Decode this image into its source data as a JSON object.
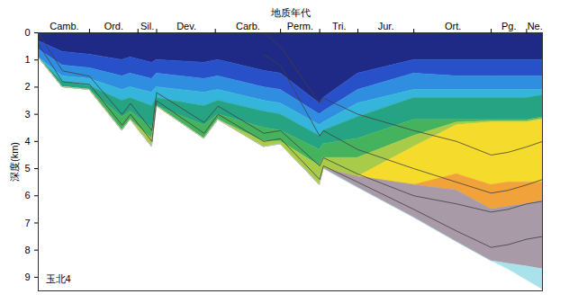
{
  "chart_data": {
    "type": "area",
    "x_label": "地质年代",
    "y_label": "深度(km)",
    "annotation": "玉北4",
    "x": [
      541,
      515,
      486,
      451,
      442,
      419,
      414,
      363,
      348,
      299,
      281,
      239,
      235,
      198,
      138,
      92,
      55,
      37,
      17,
      0
    ],
    "xlim": [
      541,
      0
    ],
    "xticks": [
      {
        "value": 513,
        "label": "Camb."
      },
      {
        "value": 460,
        "label": "Ord."
      },
      {
        "value": 424,
        "label": "Sil."
      },
      {
        "value": 382,
        "label": "Dev."
      },
      {
        "value": 316,
        "label": "Carb."
      },
      {
        "value": 260,
        "label": "Perm."
      },
      {
        "value": 218,
        "label": "Tri."
      },
      {
        "value": 168,
        "label": "Jur."
      },
      {
        "value": 96,
        "label": "Ort."
      },
      {
        "value": 36,
        "label": "Pg."
      },
      {
        "value": 8,
        "label": "Ne."
      }
    ],
    "period_boundaries": [
      486,
      434,
      414,
      351,
      281,
      239,
      198,
      138,
      55,
      17
    ],
    "ylim": [
      0,
      9.5
    ],
    "yticks": [
      0,
      1,
      2,
      3,
      4,
      5,
      6,
      7,
      8,
      9
    ],
    "series": [
      {
        "color": "#1f2a86",
        "y1": [
          0,
          0,
          0,
          0,
          0,
          0,
          0,
          0,
          0,
          0,
          0,
          0,
          0,
          0,
          0,
          0,
          0,
          0,
          0,
          0
        ],
        "y2": [
          0.3,
          0.7,
          0.8,
          1.0,
          0.9,
          1.1,
          1.0,
          1.1,
          1.0,
          1.4,
          1.5,
          2.6,
          2.4,
          1.5,
          1.0,
          1.0,
          1.0,
          1.0,
          1.0,
          1.0
        ]
      },
      {
        "color": "#2850c8",
        "y1": [
          0.3,
          0.7,
          0.8,
          1.0,
          0.9,
          1.1,
          1.0,
          1.1,
          1.0,
          1.4,
          1.5,
          2.6,
          2.4,
          1.5,
          1.0,
          1.0,
          1.0,
          1.0,
          1.0,
          1.0
        ],
        "y2": [
          0.6,
          1.2,
          1.3,
          1.6,
          1.5,
          1.7,
          1.5,
          1.7,
          1.6,
          2.0,
          2.1,
          3.0,
          2.9,
          2.1,
          1.5,
          1.6,
          1.6,
          1.6,
          1.6,
          1.6
        ]
      },
      {
        "color": "#2f8ee0",
        "y1": [
          0.6,
          1.2,
          1.3,
          1.6,
          1.5,
          1.7,
          1.5,
          1.7,
          1.6,
          2.0,
          2.1,
          3.0,
          2.9,
          2.1,
          1.5,
          1.6,
          1.6,
          1.6,
          1.6,
          1.6
        ],
        "y2": [
          0.9,
          1.6,
          1.7,
          2.1,
          2.0,
          2.2,
          2.0,
          2.2,
          2.1,
          2.5,
          2.6,
          3.4,
          3.3,
          2.6,
          2.1,
          2.1,
          2.1,
          2.1,
          2.1,
          2.1
        ]
      },
      {
        "color": "#35b5dc",
        "y1": [
          0.9,
          1.6,
          1.7,
          2.1,
          2.0,
          2.2,
          2.0,
          2.2,
          2.1,
          2.5,
          2.6,
          3.4,
          3.3,
          2.6,
          2.1,
          2.1,
          2.1,
          2.1,
          2.1,
          2.1
        ],
        "y2": [
          0.9,
          1.8,
          1.95,
          2.5,
          2.4,
          2.7,
          2.4,
          2.7,
          2.5,
          2.9,
          3.0,
          3.8,
          3.6,
          3.1,
          2.4,
          2.4,
          2.4,
          2.4,
          2.4,
          2.3
        ]
      },
      {
        "color": "#26a383",
        "y1": [
          0.9,
          1.8,
          1.95,
          2.5,
          2.4,
          2.7,
          2.4,
          2.7,
          2.5,
          2.9,
          3.0,
          3.8,
          3.6,
          3.1,
          2.4,
          2.4,
          2.4,
          2.4,
          2.4,
          2.3
        ],
        "y2": [
          0.9,
          2.0,
          2.1,
          3.1,
          2.9,
          3.5,
          2.7,
          3.4,
          3.0,
          3.5,
          3.6,
          4.3,
          4.1,
          3.9,
          3.2,
          3.2,
          3.2,
          3.2,
          3.2,
          3.1
        ]
      },
      {
        "color": "#45b35e",
        "y1": [
          0.9,
          2.0,
          2.1,
          3.1,
          2.9,
          3.5,
          2.7,
          3.4,
          3.0,
          3.5,
          3.6,
          4.3,
          4.1,
          3.9,
          3.2,
          3.2,
          3.2,
          3.2,
          3.2,
          3.1
        ],
        "y2": [
          0.9,
          2.0,
          2.1,
          3.6,
          3.2,
          3.9,
          2.7,
          3.9,
          3.2,
          4.0,
          4.0,
          4.9,
          4.6,
          4.6,
          3.8,
          3.3,
          3.25,
          3.25,
          3.25,
          3.15
        ]
      },
      {
        "color": "#a9cb4a",
        "y1": [
          0.9,
          2.0,
          2.1,
          3.6,
          3.2,
          3.9,
          2.7,
          3.9,
          3.2,
          4.0,
          4.0,
          4.9,
          4.6,
          4.6,
          3.8,
          3.3,
          3.25,
          3.25,
          3.25,
          3.15
        ],
        "y2": [
          0.9,
          2.0,
          2.1,
          3.6,
          3.2,
          4.2,
          2.7,
          3.9,
          3.2,
          4.2,
          4.1,
          5.6,
          5.0,
          5.3,
          4.2,
          3.4,
          3.3,
          3.3,
          3.3,
          3.2
        ]
      },
      {
        "color": "#f5dc2c",
        "y1": [
          0.9,
          2.0,
          2.1,
          3.6,
          3.2,
          4.2,
          2.7,
          3.9,
          3.2,
          4.2,
          4.1,
          5.6,
          5.0,
          5.3,
          4.2,
          3.4,
          3.3,
          3.3,
          3.3,
          3.2
        ],
        "y2": [
          0.9,
          2.0,
          2.1,
          3.6,
          3.2,
          4.2,
          2.7,
          3.9,
          3.2,
          4.2,
          4.1,
          5.6,
          5.0,
          5.3,
          5.6,
          5.2,
          5.6,
          5.5,
          5.5,
          5.5
        ]
      },
      {
        "color": "#f2a23a",
        "y1": [
          0.9,
          2.0,
          2.1,
          3.6,
          3.2,
          4.2,
          2.7,
          3.9,
          3.2,
          4.2,
          4.1,
          5.6,
          5.0,
          5.3,
          5.6,
          5.2,
          5.6,
          5.5,
          5.5,
          5.5
        ],
        "y2": [
          0.9,
          2.0,
          2.1,
          3.6,
          3.2,
          4.2,
          2.7,
          3.9,
          3.2,
          4.2,
          4.1,
          5.6,
          5.0,
          5.3,
          5.6,
          5.8,
          6.5,
          6.4,
          6.3,
          6.2
        ]
      },
      {
        "color": "#a99aa8",
        "y1": [
          0.9,
          2.0,
          2.1,
          3.6,
          3.2,
          4.2,
          2.7,
          3.9,
          3.2,
          4.2,
          4.1,
          5.6,
          5.0,
          5.3,
          5.6,
          5.8,
          6.5,
          6.4,
          6.3,
          6.2
        ],
        "y2": [
          0.9,
          2.0,
          2.1,
          3.6,
          3.2,
          4.2,
          2.7,
          3.9,
          3.2,
          4.2,
          4.1,
          5.6,
          5.0,
          5.7,
          6.8,
          7.7,
          8.4,
          8.5,
          8.6,
          8.7
        ]
      },
      {
        "color": "#a9e2ea",
        "y1": [
          0.9,
          2.0,
          2.1,
          3.6,
          3.2,
          4.2,
          2.7,
          3.9,
          3.2,
          4.2,
          4.1,
          5.6,
          5.0,
          5.7,
          6.8,
          7.7,
          8.4,
          8.5,
          8.6,
          8.7
        ],
        "y2": [
          0.9,
          2.0,
          2.1,
          3.6,
          3.2,
          4.2,
          2.7,
          3.9,
          3.2,
          4.2,
          4.1,
          5.6,
          5.0,
          5.7,
          6.8,
          7.7,
          8.4,
          8.7,
          9.1,
          9.45
        ]
      }
    ],
    "lines": [
      {
        "color": "#404040",
        "values": [
          null,
          null,
          null,
          null,
          null,
          null,
          null,
          null,
          null,
          0.0,
          0.5,
          2.6,
          2.4,
          3.0,
          3.6,
          4.0,
          4.5,
          4.4,
          4.2,
          4.0
        ]
      },
      {
        "color": "#404040",
        "values": [
          null,
          null,
          null,
          null,
          null,
          null,
          null,
          null,
          null,
          0.8,
          1.2,
          3.8,
          3.6,
          4.3,
          5.0,
          5.5,
          5.9,
          5.8,
          5.6,
          5.4
        ]
      },
      {
        "color": "#404040",
        "values": [
          0.0,
          1.4,
          1.6,
          3.0,
          2.6,
          3.6,
          2.2,
          3.3,
          2.7,
          3.7,
          3.6,
          4.9,
          4.6,
          5.2,
          6.0,
          6.3,
          6.6,
          6.5,
          6.3,
          6.2
        ]
      },
      {
        "color": "#404040",
        "values": [
          0.4,
          1.8,
          1.9,
          3.4,
          3.0,
          4.0,
          2.5,
          3.7,
          3.0,
          4.0,
          3.9,
          5.4,
          4.9,
          5.5,
          6.5,
          7.3,
          7.9,
          7.8,
          7.6,
          7.5
        ]
      }
    ]
  }
}
